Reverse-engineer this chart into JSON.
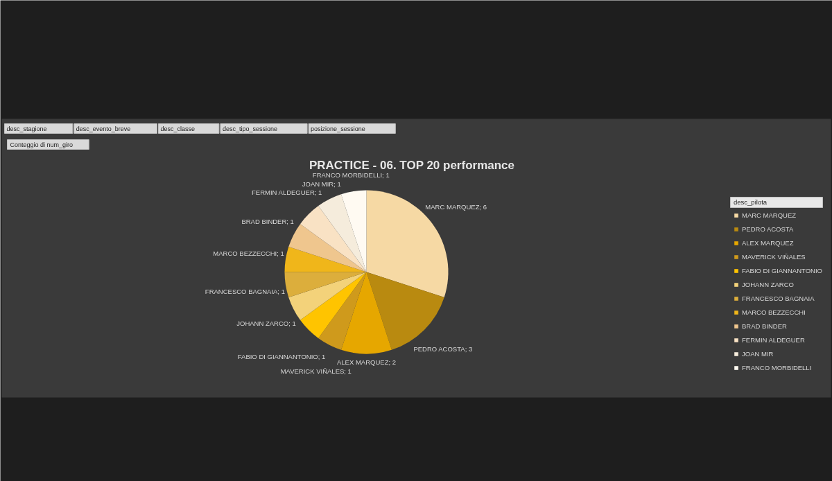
{
  "chart_data": {
    "type": "pie",
    "title": "PRACTICE - 06. TOP  20 performance",
    "legend_title": "desc_pilota",
    "legend": "right",
    "categories": [
      "MARC MARQUEZ",
      "PEDRO ACOSTA",
      "ALEX MARQUEZ",
      "MAVERICK VIÑALES",
      "FABIO DI GIANNANTONIO",
      "JOHANN ZARCO",
      "FRANCESCO BAGNAIA",
      "MARCO BEZZECCHI",
      "BRAD BINDER",
      "FERMIN ALDEGUER",
      "JOAN MIR",
      "FRANCO MORBIDELLI"
    ],
    "values": [
      6,
      3,
      2,
      1,
      1,
      1,
      1,
      1,
      1,
      1,
      1,
      1
    ],
    "colors": [
      "#f6d9a4",
      "#b98a10",
      "#e6a700",
      "#cf9a1c",
      "#ffc400",
      "#f3d27a",
      "#dcae3c",
      "#f0b61a",
      "#efc68e",
      "#f9e2c4",
      "#f5ecdc",
      "#fffaf2"
    ],
    "value_labels": [
      "MARC MARQUEZ; 6",
      "PEDRO ACOSTA; 3",
      "ALEX MARQUEZ; 2",
      "MAVERICK VIÑALES; 1",
      "FABIO DI GIANNANTONIO; 1",
      "JOHANN ZARCO; 1",
      "FRANCESCO BAGNAIA; 1",
      "MARCO BEZZECCHI; 1",
      "BRAD BINDER; 1",
      "FERMIN ALDEGUER; 1",
      "JOAN MIR; 1",
      "FRANCO MORBIDELLI; 1"
    ],
    "annotations": [
      "desc_stagione",
      "desc_evento_breve",
      "desc_classe",
      "desc_tipo_sessione",
      "posizione_sessione",
      "Conteggio di  num_giro"
    ]
  }
}
